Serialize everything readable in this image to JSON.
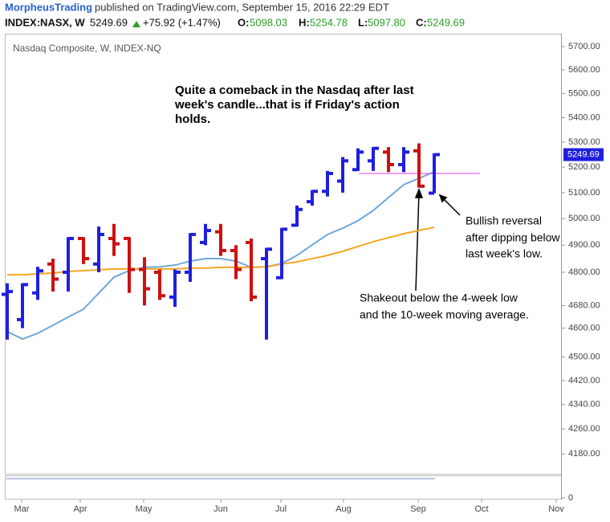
{
  "header": {
    "author": "MorpheusTrading",
    "published": "published on TradingView.com, September 15, 2016 22:29 EDT",
    "symbol": "INDEX:NASX, W",
    "last": "5249.69",
    "change": "+75.92 (+1.47%)",
    "open_label": "O:",
    "open": "5098.03",
    "high_label": "H:",
    "high": "5254.78",
    "low_label": "L:",
    "low": "5097.80",
    "close_label": "C:",
    "close": "5249.69"
  },
  "chart_data": {
    "type": "ohlc",
    "title": "Nasdaq Composite, W, INDEX-NQ",
    "log_scale": true,
    "up_color": "#1f1fe0",
    "down_color": "#cc1111",
    "series": {
      "open": [
        4720,
        4630,
        4725,
        4830,
        4800,
        4925,
        4830,
        4925,
        4925,
        4810,
        4800,
        4710,
        4800,
        4910,
        4950,
        4880,
        4910,
        4850,
        4780,
        4975,
        5065,
        5105,
        5145,
        5190,
        5225,
        5260,
        5210,
        5265,
        5098.03
      ],
      "high": [
        4760,
        4760,
        4820,
        4850,
        4930,
        4930,
        4970,
        4980,
        4930,
        4855,
        4810,
        4810,
        4945,
        4980,
        4980,
        4900,
        4925,
        4890,
        4965,
        5050,
        5110,
        5185,
        5240,
        5275,
        5280,
        5280,
        5280,
        5295,
        5254.78
      ],
      "low": [
        4560,
        4600,
        4700,
        4730,
        4730,
        4830,
        4800,
        4860,
        4725,
        4680,
        4700,
        4675,
        4765,
        4900,
        4860,
        4775,
        4695,
        4560,
        4775,
        4970,
        5050,
        5085,
        5100,
        5185,
        5185,
        5180,
        5180,
        5120,
        5097.8
      ],
      "close": [
        4730,
        4755,
        4805,
        4775,
        4925,
        4850,
        4940,
        4905,
        4810,
        4740,
        4715,
        4800,
        4940,
        4955,
        4880,
        4810,
        4710,
        4885,
        4960,
        5035,
        5105,
        5175,
        5225,
        5260,
        5275,
        5210,
        5260,
        5125,
        5249.69
      ]
    },
    "moving_averages": [
      {
        "color": "#6fa8dc",
        "values": [
          4588,
          4562,
          4582,
          4610,
          4639,
          4667,
          4724,
          4782,
          4806,
          4818,
          4820,
          4826,
          4841,
          4850,
          4850,
          4841,
          4818,
          4820,
          4832,
          4862,
          4901,
          4940,
          4964,
          4992,
          5031,
          5081,
          5131,
          5156,
          5181
        ]
      },
      {
        "color": "#f5a623",
        "values": [
          4791,
          4791,
          4794,
          4797,
          4803,
          4806,
          4809,
          4812,
          4812,
          4812,
          4812,
          4812,
          4815,
          4815,
          4818,
          4818,
          4818,
          4820,
          4830,
          4838,
          4850,
          4862,
          4877,
          4895,
          4913,
          4928,
          4943,
          4955,
          4967
        ]
      }
    ],
    "level_line": {
      "value": 5175,
      "color": "#e040e0"
    },
    "last_price": 5249.69,
    "ylim": [
      4117,
      5756
    ],
    "yticks": [
      {
        "value": 5700,
        "label": "5700.00"
      },
      {
        "value": 5600,
        "label": "5600.00"
      },
      {
        "value": 5500,
        "label": "5500.00"
      },
      {
        "value": 5400,
        "label": "5400.00"
      },
      {
        "value": 5300,
        "label": "5300.00"
      },
      {
        "value": 5200,
        "label": "5200.00"
      },
      {
        "value": 5100,
        "label": "5100.00"
      },
      {
        "value": 5000,
        "label": "5000.00"
      },
      {
        "value": 4900,
        "label": "4900.00"
      },
      {
        "value": 4800,
        "label": "4800.00"
      },
      {
        "value": 4680,
        "label": "4680.00"
      },
      {
        "value": 4600,
        "label": "4600.00"
      },
      {
        "value": 4500,
        "label": "4500.00"
      },
      {
        "value": 4420,
        "label": "4420.00"
      },
      {
        "value": 4340,
        "label": "4340.00"
      },
      {
        "value": 4260,
        "label": "4260.00"
      },
      {
        "value": 4180,
        "label": "4180.00"
      }
    ],
    "xticks": [
      "Mar",
      "Apr",
      "May",
      "Jun",
      "Jul",
      "Aug",
      "Sep",
      "Oct",
      "Nov"
    ],
    "indicator_yticks": [
      0
    ],
    "annotations": [
      [
        "Quite a comeback in the Nasdaq after last",
        "week's candle...that is if Friday's action",
        "holds."
      ],
      [
        "Bullish reversal",
        "after dipping below",
        "last week's low."
      ],
      [
        "Shakeout below the 4-week low",
        "and the 10-week moving average."
      ]
    ]
  }
}
